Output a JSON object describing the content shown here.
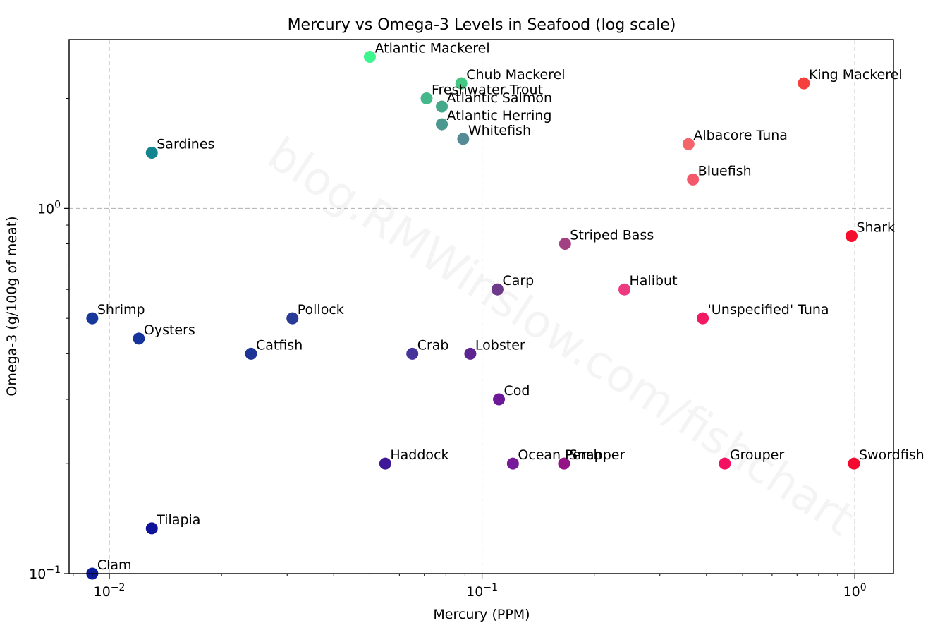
{
  "chart_data": {
    "type": "scatter",
    "title": "Mercury vs Omega-3 Levels in Seafood (log scale)",
    "xlabel": "Mercury (PPM)",
    "ylabel": "Omega-3 (g/100g of meat)",
    "xscale": "log",
    "yscale": "log",
    "xlim": [
      0.0078,
      1.27
    ],
    "ylim": [
      0.1,
      2.9
    ],
    "grid": true,
    "grid_style": "dashed",
    "watermark": "blog.RMWinslow.com/fishchart",
    "x_ticks": [
      {
        "value": 0.01,
        "base": "10",
        "exp": "−2"
      },
      {
        "value": 0.1,
        "base": "10",
        "exp": "−1"
      },
      {
        "value": 1,
        "base": "10",
        "exp": "0"
      }
    ],
    "y_ticks": [
      {
        "value": 0.1,
        "base": "10",
        "exp": "−1"
      },
      {
        "value": 1,
        "base": "10",
        "exp": "0"
      }
    ],
    "points": [
      {
        "label": "Atlantic Mackerel",
        "x": 0.05,
        "y": 2.6,
        "color": "#3df58f"
      },
      {
        "label": "Chub Mackerel",
        "x": 0.088,
        "y": 2.2,
        "color": "#45c784"
      },
      {
        "label": "Freshwater Trout",
        "x": 0.071,
        "y": 2.0,
        "color": "#44b88a"
      },
      {
        "label": "Atlantic Salmon",
        "x": 0.078,
        "y": 1.9,
        "color": "#46a88a"
      },
      {
        "label": "Atlantic Herring",
        "x": 0.078,
        "y": 1.7,
        "color": "#4a988f"
      },
      {
        "label": "Whitefish",
        "x": 0.089,
        "y": 1.55,
        "color": "#568a94"
      },
      {
        "label": "Sardines",
        "x": 0.013,
        "y": 1.42,
        "color": "#12858f"
      },
      {
        "label": "King Mackerel",
        "x": 0.73,
        "y": 2.2,
        "color": "#f6403e"
      },
      {
        "label": "Albacore Tuna",
        "x": 0.358,
        "y": 1.5,
        "color": "#f4646b"
      },
      {
        "label": "Bluefish",
        "x": 0.368,
        "y": 1.2,
        "color": "#f3596a"
      },
      {
        "label": "Shark",
        "x": 0.98,
        "y": 0.84,
        "color": "#f40f2e"
      },
      {
        "label": "Striped Bass",
        "x": 0.167,
        "y": 0.8,
        "color": "#a34084"
      },
      {
        "label": "Halibut",
        "x": 0.241,
        "y": 0.6,
        "color": "#ee3a7f"
      },
      {
        "label": "Carp",
        "x": 0.11,
        "y": 0.6,
        "color": "#6e3a8a"
      },
      {
        "label": "'Unspecified' Tuna",
        "x": 0.391,
        "y": 0.5,
        "color": "#f21b62"
      },
      {
        "label": "Shrimp",
        "x": 0.009,
        "y": 0.5,
        "color": "#17389a"
      },
      {
        "label": "Pollock",
        "x": 0.031,
        "y": 0.5,
        "color": "#2a3a97"
      },
      {
        "label": "Oysters",
        "x": 0.012,
        "y": 0.44,
        "color": "#15339a"
      },
      {
        "label": "Catfish",
        "x": 0.024,
        "y": 0.4,
        "color": "#1b3496"
      },
      {
        "label": "Crab",
        "x": 0.065,
        "y": 0.4,
        "color": "#47349a"
      },
      {
        "label": "Lobster",
        "x": 0.093,
        "y": 0.4,
        "color": "#5e2491"
      },
      {
        "label": "Cod",
        "x": 0.111,
        "y": 0.3,
        "color": "#6d1896"
      },
      {
        "label": "Haddock",
        "x": 0.055,
        "y": 0.2,
        "color": "#3e1899"
      },
      {
        "label": "Ocean Perch",
        "x": 0.121,
        "y": 0.2,
        "color": "#771a9a"
      },
      {
        "label": "Snapper",
        "x": 0.166,
        "y": 0.2,
        "color": "#931487"
      },
      {
        "label": "Grouper",
        "x": 0.448,
        "y": 0.2,
        "color": "#f50f60"
      },
      {
        "label": "Swordfish",
        "x": 0.995,
        "y": 0.2,
        "color": "#f4082e"
      },
      {
        "label": "Tilapia",
        "x": 0.013,
        "y": 0.133,
        "color": "#0f129a"
      },
      {
        "label": "Clam",
        "x": 0.009,
        "y": 0.1,
        "color": "#0a1a9a"
      }
    ]
  }
}
